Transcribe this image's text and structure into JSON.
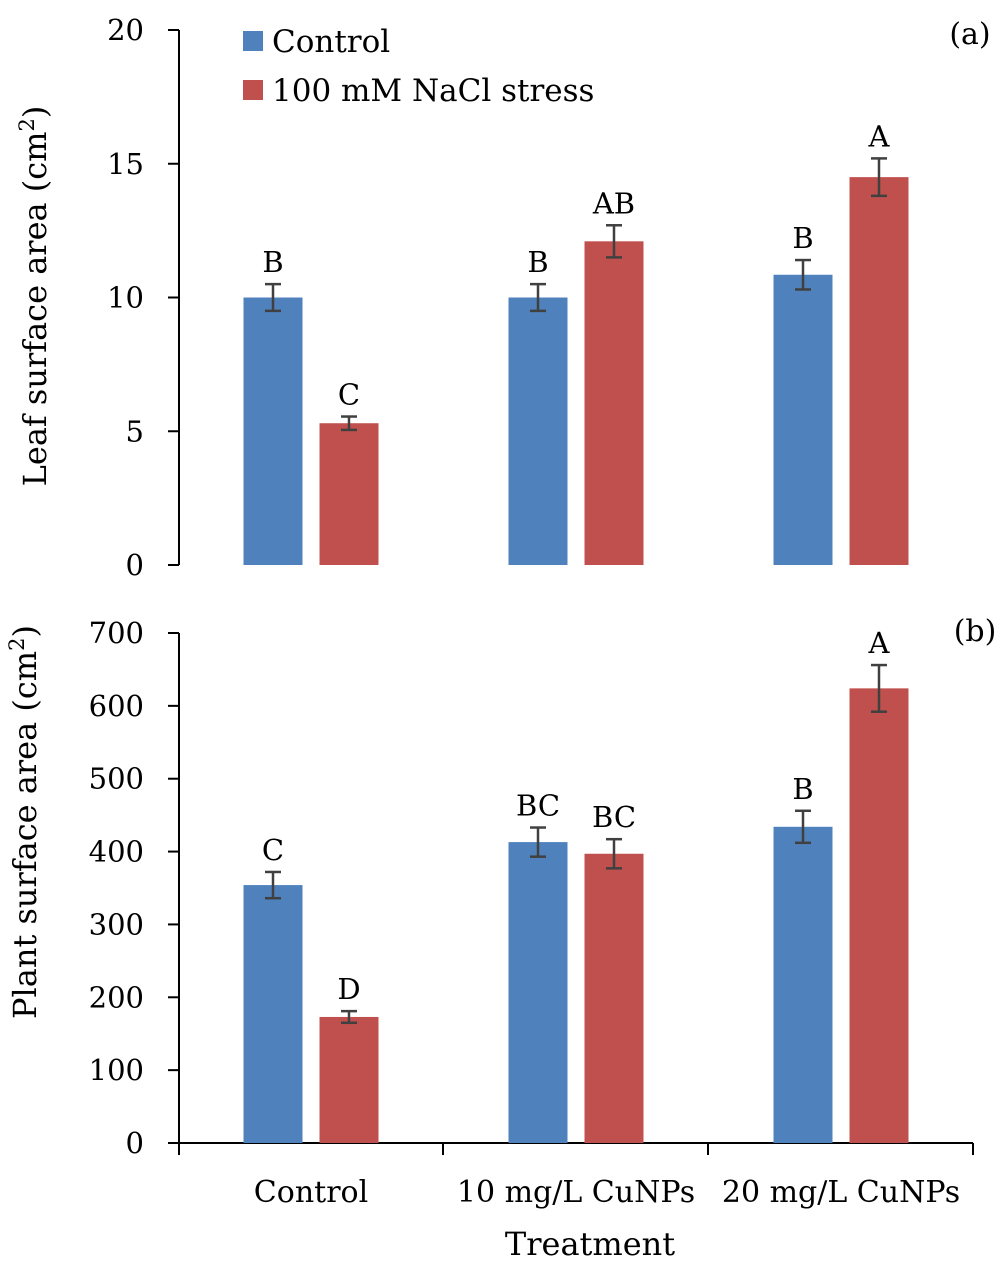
{
  "legend": [
    {
      "name": "Control",
      "color": "#4F81BD"
    },
    {
      "name": "100 mM NaCl stress",
      "color": "#C0504D"
    }
  ],
  "x_title": "Treatment",
  "categories": [
    "Control",
    "10 mg/L CuNPs",
    "20 mg/L CuNPs"
  ],
  "chart_data": [
    {
      "type": "bar",
      "panel": "(a)",
      "ylabel": "Leaf surface area (cm2)",
      "ylim": [
        0,
        20
      ],
      "yticks": [
        0,
        5,
        10,
        15,
        20
      ],
      "categories": [
        "Control",
        "10 mg/L CuNPs",
        "20 mg/L CuNPs"
      ],
      "series": [
        {
          "name": "Control",
          "color": "#4F81BD",
          "values": [
            10.0,
            10.0,
            10.85
          ],
          "errors": [
            0.5,
            0.5,
            0.55
          ],
          "letters": [
            "B",
            "B",
            "B"
          ]
        },
        {
          "name": "100 mM NaCl stress",
          "color": "#C0504D",
          "values": [
            5.3,
            12.1,
            14.5
          ],
          "errors": [
            0.25,
            0.6,
            0.7
          ],
          "letters": [
            "C",
            "AB",
            "A"
          ]
        }
      ]
    },
    {
      "type": "bar",
      "panel": "(b)",
      "ylabel": "Plant surface area (cm2)",
      "ylim": [
        0,
        700
      ],
      "yticks": [
        0,
        100,
        200,
        300,
        400,
        500,
        600,
        700
      ],
      "categories": [
        "Control",
        "10 mg/L CuNPs",
        "20 mg/L CuNPs"
      ],
      "series": [
        {
          "name": "Control",
          "color": "#4F81BD",
          "values": [
            354,
            413,
            434
          ],
          "errors": [
            18,
            20,
            22
          ],
          "letters": [
            "C",
            "BC",
            "B"
          ]
        },
        {
          "name": "100 mM NaCl stress",
          "color": "#C0504D",
          "values": [
            173,
            397,
            624
          ],
          "errors": [
            8,
            20,
            32
          ],
          "letters": [
            "D",
            "BC",
            "A"
          ]
        }
      ]
    }
  ]
}
